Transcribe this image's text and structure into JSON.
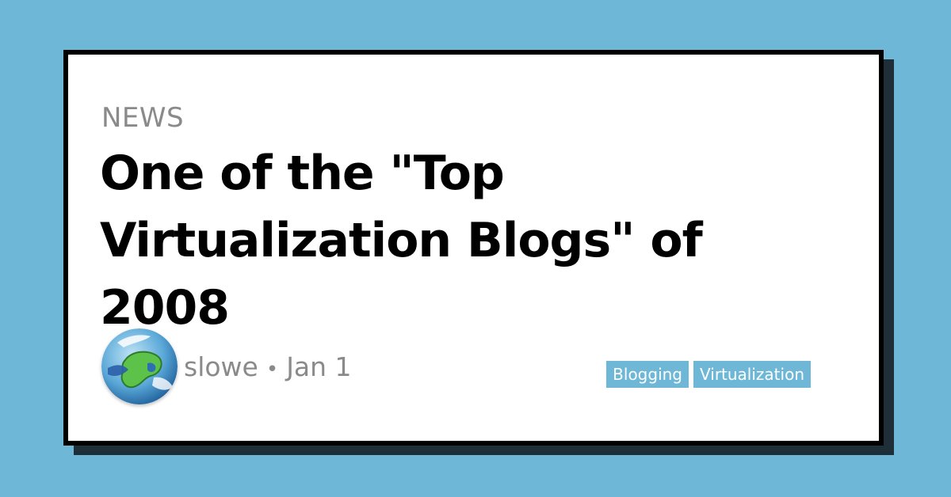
{
  "post": {
    "section": "NEWS",
    "title": "One of the \"Top Virtualization Blogs\" of 2008",
    "author": "slowe",
    "separator": "•",
    "date": "Jan 1",
    "tags": [
      "Blogging",
      "Virtualization"
    ]
  },
  "colors": {
    "background": "#6eb7d6",
    "card": "#ffffff",
    "border": "#000000",
    "shadow": "#1f2f3a",
    "muted_text": "#8a8a8a",
    "tag_bg": "#6eb7d6"
  },
  "icons": {
    "avatar": "globe-avatar"
  }
}
